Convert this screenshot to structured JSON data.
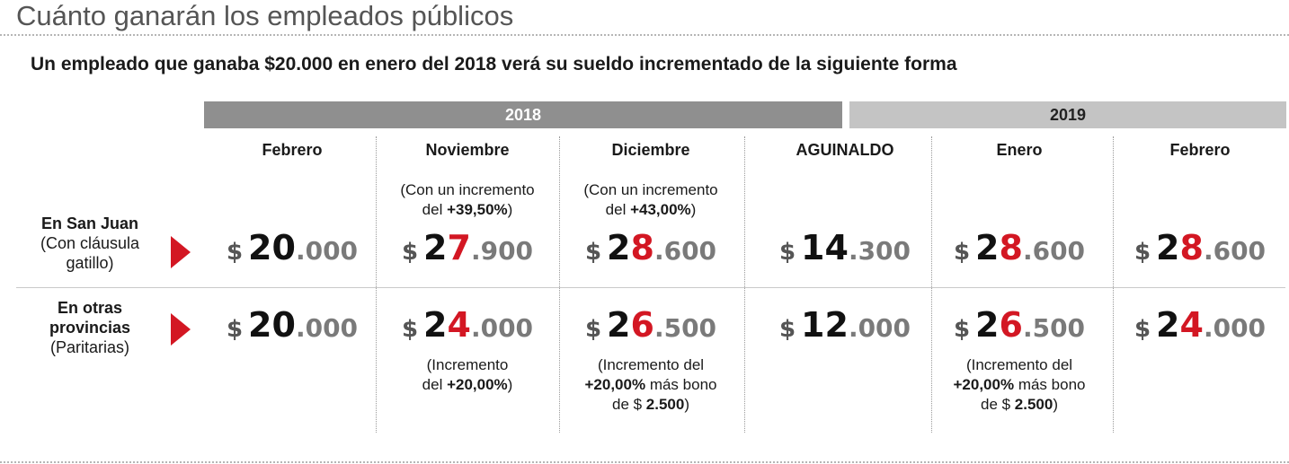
{
  "title": "Cuánto ganarán los empleados públicos",
  "subtitle": "Un empleado que ganaba $20.000 en enero del 2018 verá su sueldo incrementado de la siguiente forma",
  "colors": {
    "accent": "#d31723",
    "year_2018": "#8f8f8f",
    "year_2019": "#c4c4c4"
  },
  "arrow_icon": "triangle-right-icon",
  "chart_data": {
    "type": "table",
    "years": [
      "2018",
      "2019"
    ],
    "columns": [
      "Febrero",
      "Noviembre",
      "Diciembre",
      "AGUINALDO",
      "Enero",
      "Febrero"
    ],
    "rows": [
      {
        "label_bold": "En San Juan",
        "label_rest": "(Con cláusula gatillo)",
        "values": [
          {
            "cur": "$",
            "pre": "2",
            "hi": "",
            "post": "0",
            "dec": ".000"
          },
          {
            "cur": "$",
            "pre": "2",
            "hi": "7",
            "post": "",
            "dec": ".900"
          },
          {
            "cur": "$",
            "pre": "2",
            "hi": "8",
            "post": "",
            "dec": ".600"
          },
          {
            "cur": "$",
            "pre": "14",
            "hi": "",
            "post": "",
            "dec": ".300"
          },
          {
            "cur": "$",
            "pre": "2",
            "hi": "8",
            "post": "",
            "dec": ".600"
          },
          {
            "cur": "$",
            "pre": "2",
            "hi": "8",
            "post": "",
            "dec": ".600"
          }
        ],
        "notes_above": [
          null,
          {
            "l1": "(Con un incremento",
            "l2a": "del ",
            "l2b": "+39,50%",
            "l2c": ")"
          },
          {
            "l1": "(Con un incremento",
            "l2a": "del ",
            "l2b": "+43,00%",
            "l2c": ")"
          },
          null,
          null,
          null
        ]
      },
      {
        "label_bold": "En otras provincias",
        "label_rest": "(Paritarias)",
        "values": [
          {
            "cur": "$",
            "pre": "2",
            "hi": "",
            "post": "0",
            "dec": ".000"
          },
          {
            "cur": "$",
            "pre": "2",
            "hi": "4",
            "post": "",
            "dec": ".000"
          },
          {
            "cur": "$",
            "pre": "2",
            "hi": "6",
            "post": "",
            "dec": ".500"
          },
          {
            "cur": "$",
            "pre": "12",
            "hi": "",
            "post": "",
            "dec": ".000"
          },
          {
            "cur": "$",
            "pre": "2",
            "hi": "6",
            "post": "",
            "dec": ".500"
          },
          {
            "cur": "$",
            "pre": "2",
            "hi": "4",
            "post": "",
            "dec": ".000"
          }
        ],
        "notes_below": [
          null,
          {
            "l1": "(Incremento",
            "l2a": "del ",
            "l2b": "+20,00%",
            "l2c": ")"
          },
          {
            "l1": "(Incremento del",
            "l2a": "",
            "l2b": "+20,00%",
            "l2c": " más bono",
            "l3a": "de $ ",
            "l3b": "2.500",
            "l3c": ")"
          },
          null,
          {
            "l1": "(Incremento del",
            "l2a": "",
            "l2b": "+20,00%",
            "l2c": " más bono",
            "l3a": "de $ ",
            "l3b": "2.500",
            "l3c": ")"
          },
          null
        ]
      }
    ]
  }
}
